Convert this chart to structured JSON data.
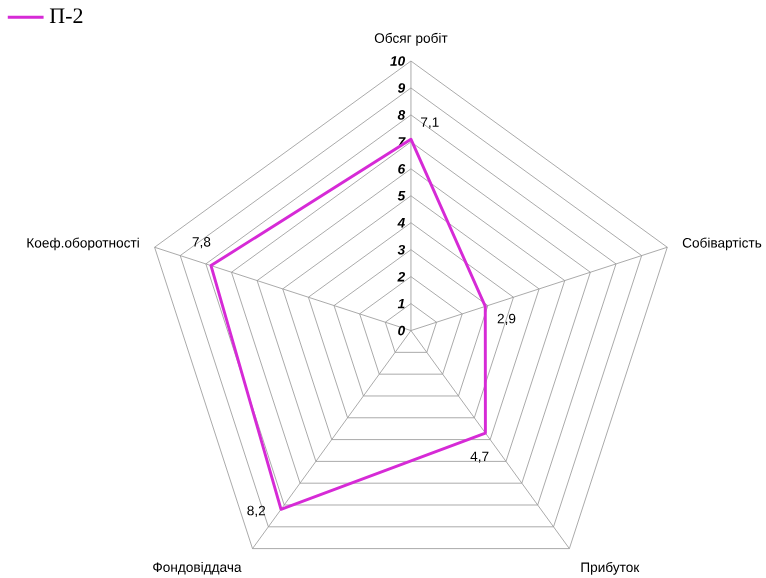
{
  "chart_data": {
    "type": "radar",
    "categories": [
      "Обсяг робіт",
      "Собівартість",
      "Прибуток",
      "Фондовіддача",
      "Коеф.оборотності"
    ],
    "series": [
      {
        "name": "П-2",
        "color": "#d62ad6",
        "values": [
          7.1,
          2.9,
          4.7,
          8.2,
          7.8
        ],
        "value_labels": [
          "7,1",
          "2,9",
          "4,7",
          "8,2",
          "7,8"
        ]
      }
    ],
    "ylim": [
      0,
      10
    ],
    "yticks": [
      0,
      1,
      2,
      3,
      4,
      5,
      6,
      7,
      8,
      9,
      10
    ],
    "grid": true,
    "legend": "top left"
  }
}
